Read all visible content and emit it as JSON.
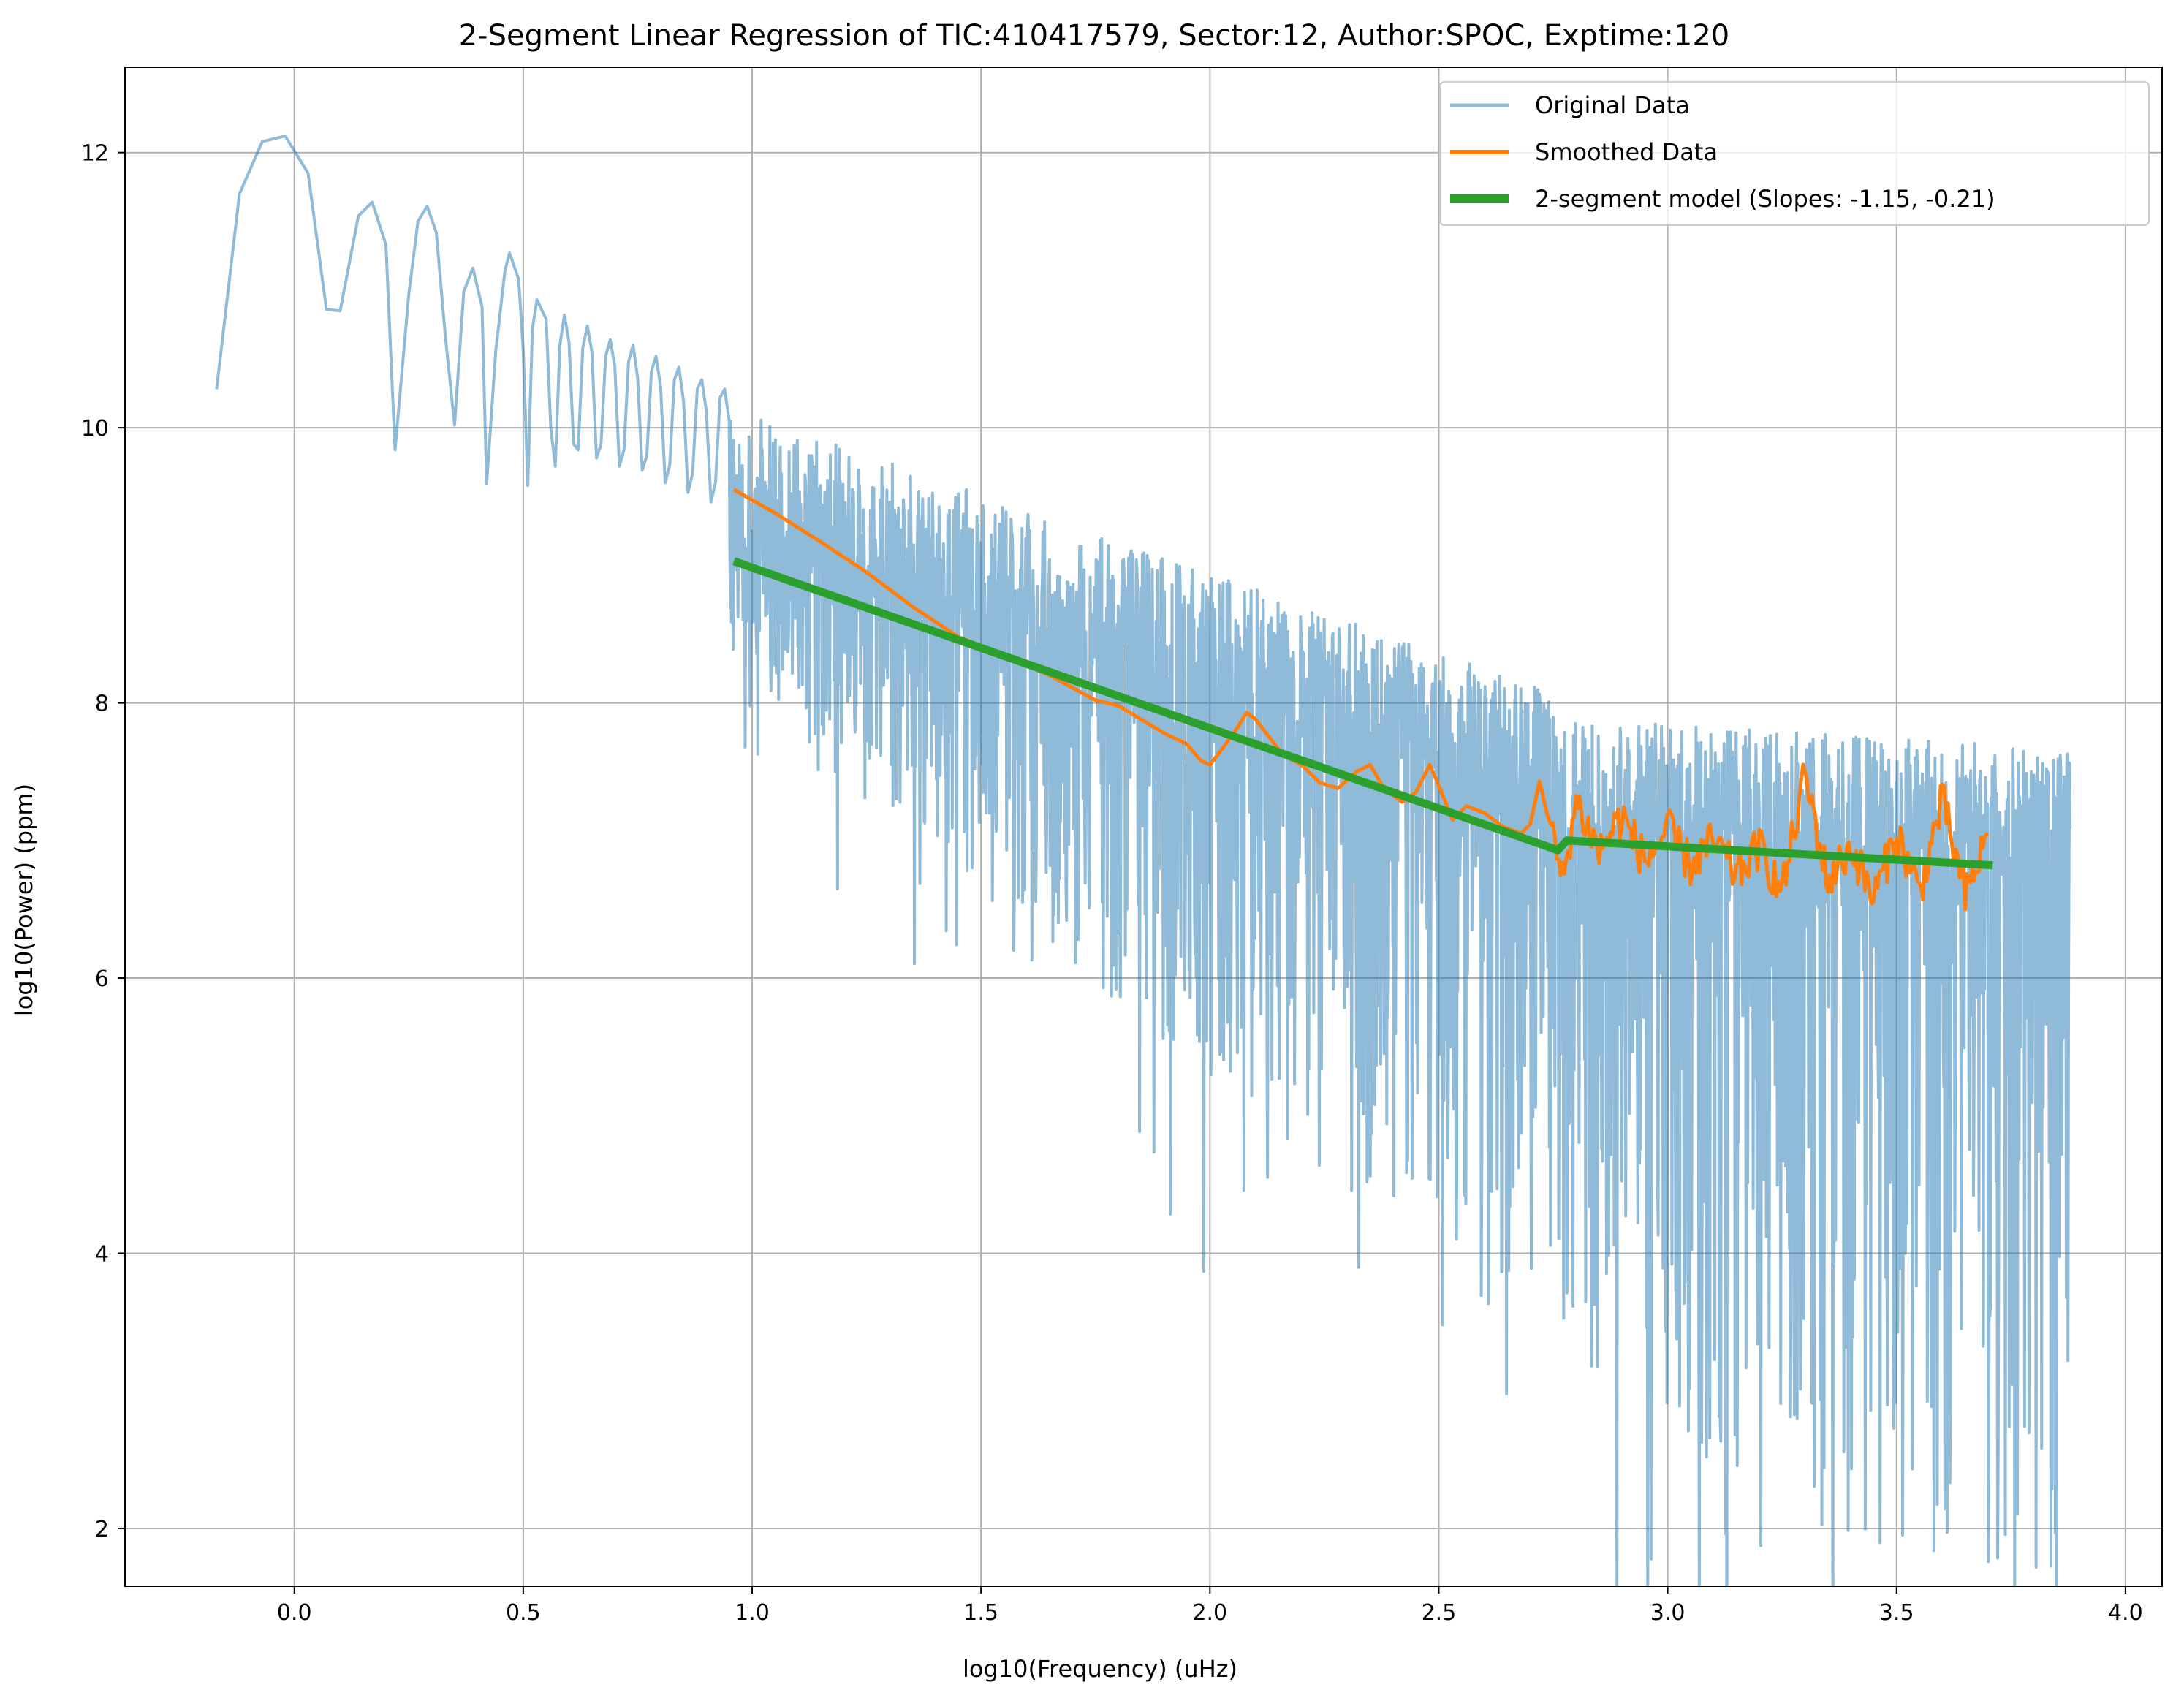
{
  "chart_data": {
    "type": "line",
    "title": "2-Segment Linear Regression of TIC:410417579, Sector:12, Author:SPOC, Exptime:120",
    "xlabel": "log10(Frequency) (uHz)",
    "ylabel": "log10(Power) (ppm)",
    "xlim": [
      -0.37,
      4.08
    ],
    "ylim": [
      1.58,
      12.62
    ],
    "xticks": [
      0.0,
      0.5,
      1.0,
      1.5,
      2.0,
      2.5,
      3.0,
      3.5,
      4.0
    ],
    "yticks": [
      2,
      4,
      6,
      8,
      10,
      12
    ],
    "grid": true,
    "legend_position": "top-right",
    "series": [
      {
        "name": "Original Data",
        "color": "#1f77b4",
        "alpha": 0.5,
        "x_range": [
          -0.17,
          3.88
        ],
        "points": [
          [
            -0.17,
            10.28
          ],
          [
            -0.12,
            11.7
          ],
          [
            -0.07,
            12.08
          ],
          [
            -0.02,
            12.12
          ],
          [
            0.03,
            11.85
          ],
          [
            0.07,
            10.86
          ],
          [
            0.1,
            10.85
          ],
          [
            0.14,
            11.54
          ],
          [
            0.17,
            11.64
          ],
          [
            0.2,
            11.33
          ],
          [
            0.22,
            9.84
          ],
          [
            0.25,
            10.97
          ],
          [
            0.27,
            11.5
          ],
          [
            0.29,
            11.61
          ],
          [
            0.31,
            11.42
          ],
          [
            0.33,
            10.66
          ],
          [
            0.35,
            10.02
          ],
          [
            0.37,
            10.99
          ],
          [
            0.39,
            11.16
          ],
          [
            0.41,
            10.88
          ],
          [
            0.42,
            9.59
          ],
          [
            0.44,
            10.56
          ],
          [
            0.46,
            11.14
          ],
          [
            0.47,
            11.27
          ],
          [
            0.49,
            11.08
          ],
          [
            0.5,
            10.56
          ],
          [
            0.51,
            9.58
          ],
          [
            0.52,
            10.72
          ],
          [
            0.53,
            10.93
          ],
          [
            0.55,
            10.79
          ],
          [
            0.56,
            10.0
          ],
          [
            0.57,
            9.72
          ],
          [
            0.58,
            10.6
          ],
          [
            0.59,
            10.82
          ],
          [
            0.6,
            10.62
          ],
          [
            0.61,
            9.88
          ],
          [
            0.62,
            9.84
          ],
          [
            0.63,
            10.58
          ],
          [
            0.64,
            10.74
          ],
          [
            0.65,
            10.55
          ],
          [
            0.66,
            9.78
          ],
          [
            0.67,
            9.88
          ],
          [
            0.68,
            10.52
          ],
          [
            0.69,
            10.64
          ],
          [
            0.7,
            10.45
          ],
          [
            0.71,
            9.72
          ],
          [
            0.72,
            9.84
          ],
          [
            0.73,
            10.48
          ],
          [
            0.74,
            10.6
          ],
          [
            0.75,
            10.36
          ],
          [
            0.76,
            9.69
          ],
          [
            0.77,
            9.8
          ],
          [
            0.78,
            10.41
          ],
          [
            0.79,
            10.52
          ],
          [
            0.8,
            10.3
          ],
          [
            0.81,
            9.6
          ],
          [
            0.82,
            9.73
          ],
          [
            0.83,
            10.35
          ],
          [
            0.84,
            10.44
          ],
          [
            0.85,
            10.2
          ],
          [
            0.86,
            9.53
          ],
          [
            0.87,
            9.67
          ],
          [
            0.88,
            10.28
          ],
          [
            0.89,
            10.35
          ],
          [
            0.9,
            10.12
          ],
          [
            0.91,
            9.46
          ],
          [
            0.92,
            9.6
          ],
          [
            0.93,
            10.22
          ],
          [
            0.94,
            10.28
          ],
          [
            0.95,
            10.05
          ]
        ]
      },
      {
        "name": "Smoothed Data",
        "color": "#ff7f0e",
        "x_range": [
          0.96,
          3.7
        ],
        "points": [
          [
            0.96,
            9.55
          ],
          [
            1.05,
            9.38
          ],
          [
            1.15,
            9.17
          ],
          [
            1.25,
            8.95
          ],
          [
            1.35,
            8.7
          ],
          [
            1.45,
            8.48
          ],
          [
            1.55,
            8.35
          ],
          [
            1.65,
            8.2
          ],
          [
            1.75,
            8.02
          ],
          [
            1.8,
            7.98
          ],
          [
            1.85,
            7.88
          ],
          [
            1.9,
            7.78
          ],
          [
            1.95,
            7.7
          ],
          [
            1.98,
            7.58
          ],
          [
            2.0,
            7.55
          ],
          [
            2.03,
            7.68
          ],
          [
            2.06,
            7.82
          ],
          [
            2.08,
            7.93
          ],
          [
            2.1,
            7.88
          ],
          [
            2.13,
            7.75
          ],
          [
            2.16,
            7.62
          ],
          [
            2.2,
            7.55
          ],
          [
            2.24,
            7.42
          ],
          [
            2.28,
            7.38
          ],
          [
            2.32,
            7.5
          ],
          [
            2.35,
            7.55
          ],
          [
            2.38,
            7.38
          ],
          [
            2.42,
            7.28
          ],
          [
            2.45,
            7.35
          ],
          [
            2.48,
            7.55
          ],
          [
            2.5,
            7.4
          ],
          [
            2.53,
            7.15
          ],
          [
            2.56,
            7.25
          ],
          [
            2.6,
            7.2
          ],
          [
            2.64,
            7.1
          ],
          [
            2.68,
            7.05
          ],
          [
            2.7,
            7.12
          ],
          [
            2.72,
            7.43
          ],
          [
            2.75,
            7.0
          ],
          [
            2.77,
            6.7
          ],
          [
            2.8,
            7.28
          ],
          [
            2.85,
            6.92
          ],
          [
            2.9,
            7.18
          ],
          [
            2.95,
            6.85
          ],
          [
            3.0,
            7.08
          ],
          [
            3.05,
            6.82
          ],
          [
            3.1,
            7.0
          ],
          [
            3.15,
            6.75
          ],
          [
            3.2,
            6.95
          ],
          [
            3.25,
            6.62
          ],
          [
            3.3,
            7.48
          ],
          [
            3.35,
            6.7
          ],
          [
            3.4,
            6.95
          ],
          [
            3.45,
            6.58
          ],
          [
            3.5,
            7.05
          ],
          [
            3.55,
            6.62
          ],
          [
            3.6,
            7.3
          ],
          [
            3.65,
            6.58
          ],
          [
            3.7,
            7.05
          ]
        ]
      },
      {
        "name": "2-segment model (Slopes: -1.15, -0.21)",
        "color": "#2ca02c",
        "points": [
          [
            0.96,
            9.03
          ],
          [
            2.76,
            6.93
          ],
          [
            2.78,
            7.0
          ],
          [
            3.71,
            6.82
          ]
        ]
      }
    ]
  }
}
